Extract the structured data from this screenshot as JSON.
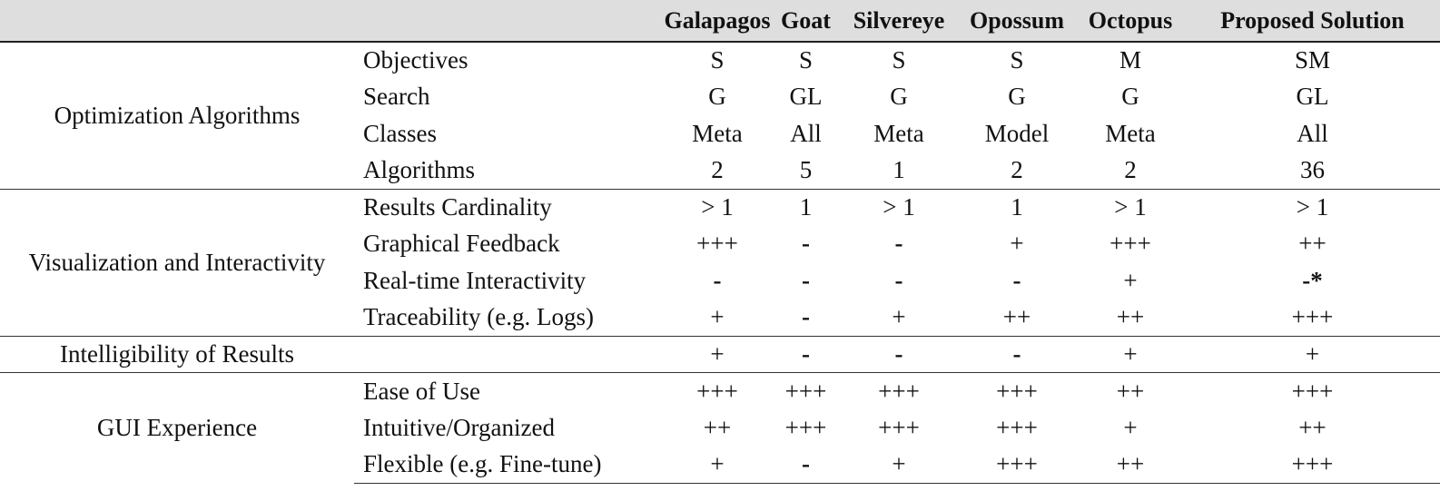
{
  "header": {
    "columns": [
      "",
      "",
      "Galapagos",
      "Goat",
      "Silvereye",
      "Opossum",
      "Octopus",
      "Proposed Solution"
    ]
  },
  "groups": [
    {
      "name": "Optimization Algorithms",
      "rows": [
        {
          "label": "Objectives",
          "values": [
            "S",
            "S",
            "S",
            "S",
            "M",
            "SM"
          ]
        },
        {
          "label": "Search",
          "values": [
            "G",
            "GL",
            "G",
            "G",
            "G",
            "GL"
          ]
        },
        {
          "label": "Classes",
          "values": [
            "Meta",
            "All",
            "Meta",
            "Model",
            "Meta",
            "All"
          ]
        },
        {
          "label": "Algorithms",
          "values": [
            "2",
            "5",
            "1",
            "2",
            "2",
            "36"
          ]
        }
      ]
    },
    {
      "name": "Visualization and Interactivity",
      "rows": [
        {
          "label": "Results Cardinality",
          "values": [
            "> 1",
            "1",
            "> 1",
            "1",
            "> 1",
            "> 1"
          ]
        },
        {
          "label": "Graphical Feedback",
          "values": [
            "+++",
            "-",
            "-",
            "+",
            "+++",
            "++"
          ]
        },
        {
          "label": "Real-time Interactivity",
          "values": [
            "-",
            "-",
            "-",
            "-",
            "+",
            "-*"
          ]
        },
        {
          "label": "Traceability (e.g. Logs)",
          "values": [
            "+",
            "-",
            "+",
            "++",
            "++",
            "+++"
          ]
        }
      ]
    },
    {
      "name": "Intelligibility of Results",
      "rows": [
        {
          "label": "",
          "values": [
            "+",
            "-",
            "-",
            "-",
            "+",
            "+"
          ]
        }
      ]
    },
    {
      "name": "GUI Experience",
      "rows": [
        {
          "label": "Ease of Use",
          "values": [
            "+++",
            "+++",
            "+++",
            "+++",
            "++",
            "+++"
          ]
        },
        {
          "label": "Intuitive/Organized",
          "values": [
            "++",
            "+++",
            "+++",
            "+++",
            "+",
            "++"
          ]
        },
        {
          "label": "Flexible (e.g. Fine-tune)",
          "values": [
            "+",
            "-",
            "+",
            "+++",
            "++",
            "+++"
          ]
        }
      ]
    }
  ]
}
